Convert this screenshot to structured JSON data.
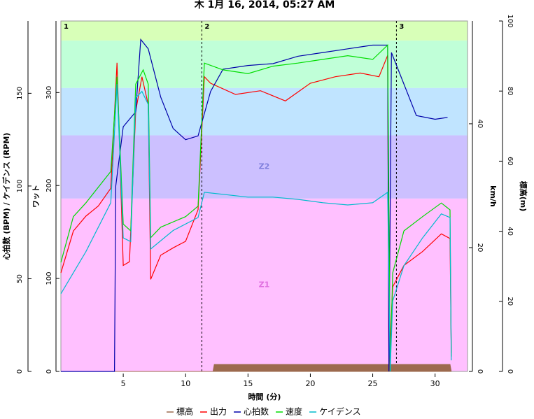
{
  "chart_data": {
    "type": "line",
    "title": "木 1月 16, 2014, 05:27 AM",
    "x_label": "時間 (分)",
    "xlim": [
      0,
      32.6
    ],
    "xticks": [
      5,
      10,
      15,
      20,
      25,
      30
    ],
    "y_axes": [
      {
        "label": "心拍数 (BPM) / ケイデンス (RPM)",
        "ylim": [
          0,
          189
        ],
        "yticks": [
          0,
          50,
          100,
          150
        ]
      },
      {
        "label": "ワット",
        "ylim": [
          0,
          377
        ],
        "yticks": [
          0,
          100,
          200,
          300
        ]
      },
      {
        "label": "km/h",
        "ylim": [
          0,
          56.6
        ],
        "yticks": [
          0,
          20,
          40
        ]
      },
      {
        "label": "標高(m)",
        "ylim": [
          0,
          100
        ],
        "yticks": [
          0,
          20,
          40,
          60,
          80,
          100
        ]
      }
    ],
    "zones": [
      {
        "label": "Z1",
        "from": 0,
        "to": 186,
        "color": "#ffc0ff"
      },
      {
        "label": "Z2",
        "from": 186,
        "to": 254,
        "color": "#ccc0ff"
      },
      {
        "label": null,
        "from": 254,
        "to": 305,
        "color": "#c0e4ff"
      },
      {
        "label": null,
        "from": 305,
        "to": 356,
        "color": "#c0ffd8"
      },
      {
        "label": null,
        "from": 356,
        "to": 377,
        "color": "#d8ffb8"
      }
    ],
    "zone_axis": 1,
    "laps": [
      {
        "label": "1",
        "x": 0
      },
      {
        "label": "2",
        "x": 11.3
      },
      {
        "label": "3",
        "x": 26.9
      }
    ],
    "series": [
      {
        "name": "標高",
        "color": "#9c6a4e",
        "axis": 3,
        "kind": "area",
        "x": [
          0,
          12.2,
          12.3,
          31.2,
          31.3
        ],
        "values": [
          0,
          0,
          2,
          2,
          0
        ]
      },
      {
        "name": "出力",
        "color": "#ff0000",
        "axis": 1,
        "x": [
          0,
          1,
          2,
          3,
          4,
          4.5,
          5,
          5.5,
          6,
          6.5,
          7,
          7.2,
          8,
          9,
          10,
          11,
          11.5,
          12,
          14,
          16,
          18,
          20,
          22,
          24,
          25.5,
          26.2,
          26.3,
          26.6,
          27.5,
          29,
          30.5,
          31.2,
          31.3
        ],
        "values": [
          106,
          151,
          167,
          178,
          197,
          332,
          114,
          118,
          280,
          317,
          287,
          99,
          125,
          133,
          140,
          174,
          317,
          310,
          298,
          302,
          291,
          310,
          317,
          321,
          317,
          340,
          0,
          91,
          114,
          129,
          148,
          143,
          20
        ]
      },
      {
        "name": "心拍数",
        "color": "#0000aa",
        "axis": 0,
        "x": [
          0,
          4.3,
          4.4,
          5,
          5.5,
          6,
          6.4,
          7,
          8,
          9,
          10,
          11,
          12,
          13,
          15,
          17,
          19,
          21,
          23,
          25,
          26.2,
          26.3,
          26.5,
          27.5,
          28.5,
          30,
          31
        ],
        "values": [
          0,
          0,
          100,
          132,
          136,
          140,
          179,
          174,
          148,
          131,
          125,
          127,
          151,
          163,
          165,
          166,
          170,
          172,
          174,
          176,
          176,
          0,
          172,
          155,
          138,
          136,
          137
        ]
      },
      {
        "name": "速度",
        "color": "#00dd00",
        "axis": 2,
        "x": [
          0,
          1,
          2,
          4,
          4.5,
          5,
          5.6,
          6,
          6.6,
          7,
          7.2,
          8,
          10,
          11,
          11.5,
          13,
          15,
          17,
          19,
          21,
          23,
          25,
          26.2,
          26.4,
          26.6,
          27.5,
          29,
          30.5,
          31.2,
          31.3
        ],
        "values": [
          17.6,
          25,
          27.2,
          32.3,
          47.6,
          23.8,
          22.7,
          46.4,
          48.7,
          46.4,
          21.6,
          23.3,
          25,
          26.7,
          49.8,
          48.7,
          48.1,
          49.3,
          49.8,
          50.4,
          51,
          50.4,
          52.7,
          0,
          15.9,
          22.7,
          25,
          27.2,
          26.1,
          2.4
        ]
      },
      {
        "name": "ケイデンス",
        "color": "#00bbcc",
        "axis": 0,
        "x": [
          0,
          2,
          4,
          4.5,
          5,
          5.6,
          6,
          6.5,
          7,
          7.2,
          9,
          11,
          11.5,
          13,
          15,
          17,
          19,
          21,
          23,
          25,
          26.2,
          26.4,
          26.6,
          27.5,
          29,
          30.5,
          31.2,
          31.3
        ],
        "values": [
          41.9,
          64.5,
          91,
          155,
          72,
          70,
          147.5,
          151,
          144,
          66,
          76,
          83,
          96.6,
          95.5,
          94,
          94,
          92.8,
          91,
          89.8,
          91,
          96.6,
          0,
          38,
          57,
          72,
          85,
          83,
          6
        ]
      }
    ]
  }
}
